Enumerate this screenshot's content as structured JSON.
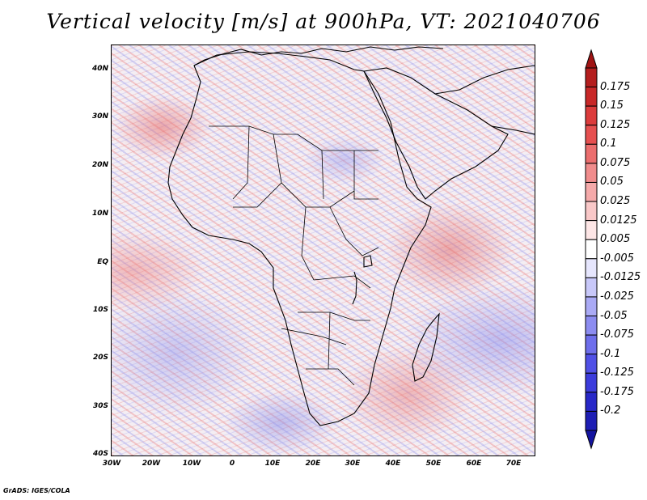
{
  "title": "Vertical velocity [m/s] at 900hPa, VT: 2021040706",
  "credit": "GrADS: IGES/COLA",
  "map": {
    "projection": "lat-lon",
    "lon_range": [
      -30,
      75
    ],
    "lat_range": [
      -40,
      45
    ],
    "lat_labels": [
      "40N",
      "30N",
      "20N",
      "10N",
      "EQ",
      "10S",
      "20S",
      "30S",
      "40S"
    ],
    "lat_values": [
      40,
      30,
      20,
      10,
      0,
      -10,
      -20,
      -30,
      -40
    ],
    "lon_labels": [
      "30W",
      "20W",
      "10W",
      "0",
      "10E",
      "20E",
      "30E",
      "40E",
      "50E",
      "60E",
      "70E"
    ],
    "lon_values": [
      -30,
      -20,
      -10,
      0,
      10,
      20,
      30,
      40,
      50,
      60,
      70
    ]
  },
  "colorbar": {
    "labels": [
      "0.175",
      "0.15",
      "0.125",
      "0.1",
      "0.075",
      "0.05",
      "0.025",
      "0.0125",
      "0.005",
      "-0.005",
      "-0.0125",
      "-0.025",
      "-0.05",
      "-0.075",
      "-0.1",
      "-0.125",
      "-0.175",
      "-0.2"
    ],
    "colors": [
      "#b41e1e",
      "#c82828",
      "#dc3c3c",
      "#e65050",
      "#eb6e6e",
      "#f08c8c",
      "#f5aaaa",
      "#f9c8c8",
      "#fde6e6",
      "#ffffff",
      "#e6e6fd",
      "#c8c8f9",
      "#aaaaf5",
      "#8c8cf0",
      "#6e6eeb",
      "#5050e6",
      "#3c3cdc",
      "#2828c8",
      "#1e1eb4"
    ],
    "top_arrow_color": "#a01414",
    "bottom_arrow_color": "#1414a0"
  }
}
